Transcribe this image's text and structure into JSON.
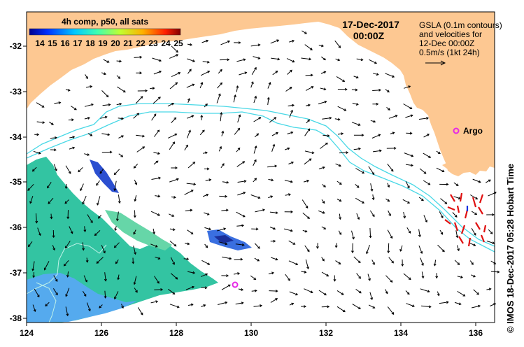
{
  "map": {
    "date": "17-Dec-2017",
    "time": "00:00Z",
    "legend_title": "4h comp, p50, all sats",
    "colorbar_labels": [
      "14",
      "15",
      "16",
      "17",
      "18",
      "19",
      "20",
      "21",
      "22",
      "23",
      "24",
      "25"
    ],
    "gsla_note": [
      "GSLA (0.1m contours)",
      "and velocities for",
      "12-Dec 00:00Z",
      "0.5m/s (1kt 24h)"
    ],
    "argo_label": "Argo",
    "x_ticks": [
      "124",
      "126",
      "128",
      "130",
      "132",
      "134",
      "136"
    ],
    "y_ticks": [
      "-32",
      "-33",
      "-34",
      "-35",
      "-36",
      "-37",
      "-38"
    ],
    "credit": "© IMOS 18-Dec-2017 05:28 Hobart Time",
    "colors": {
      "land": "#fdc892",
      "sea": "#ffffff",
      "contour": "#49d8e6",
      "argo": "#e628e6",
      "sst_main": "#33c4a2",
      "sst_cool": "#55aaee"
    }
  }
}
